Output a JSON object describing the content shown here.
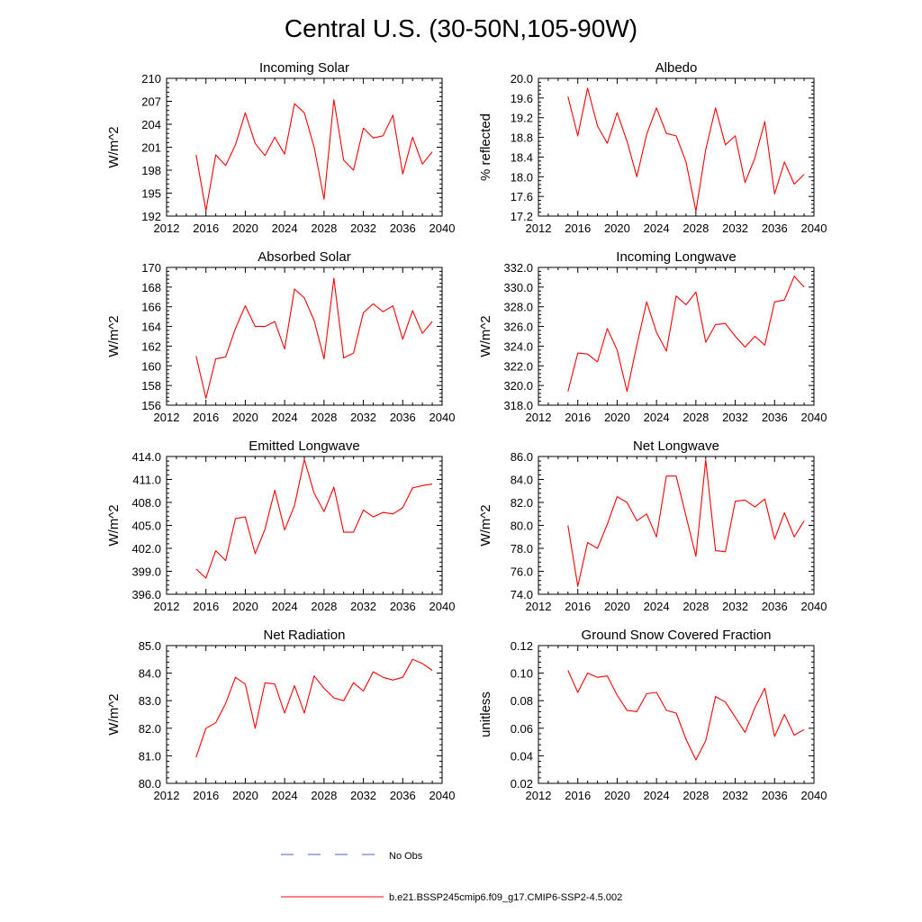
{
  "figure_title": "Central U.S. (30-50N,105-90W)",
  "colors": {
    "model_line": "#ff0000",
    "obs_line": "#4a5fd0",
    "axis": "#000000"
  },
  "legend": {
    "obs_label": "No Obs",
    "model_label": "b.e21.BSSP245cmip6.f09_g17.CMIP6-SSP2-4.5.002"
  },
  "chart_data": [
    {
      "type": "line",
      "title": "Incoming Solar",
      "xlabel": "",
      "ylabel": "W/m^2",
      "xlim": [
        2012,
        2040
      ],
      "xticks": [
        2012,
        2016,
        2020,
        2024,
        2028,
        2032,
        2036,
        2040
      ],
      "ylim": [
        192,
        210
      ],
      "yticks": [
        192,
        195,
        198,
        201,
        204,
        207,
        210
      ],
      "ytick_labels": [
        "192",
        "195",
        "198",
        "201",
        "204",
        "207",
        "210"
      ],
      "grid": false,
      "series": [
        {
          "name": "b.e21.BSSP245cmip6.f09_g17.CMIP6-SSP2-4.5.002",
          "x": [
            2015,
            2016,
            2017,
            2018,
            2019,
            2020,
            2021,
            2022,
            2023,
            2024,
            2025,
            2026,
            2027,
            2028,
            2029,
            2030,
            2031,
            2032,
            2033,
            2034,
            2035,
            2036,
            2037,
            2038,
            2039
          ],
          "y": [
            200.0,
            192.7,
            200.0,
            198.6,
            201.3,
            205.5,
            201.5,
            199.9,
            202.3,
            200.1,
            206.7,
            205.5,
            201.0,
            194.2,
            207.2,
            199.3,
            198.0,
            203.5,
            202.2,
            202.5,
            205.2,
            197.5,
            202.3,
            198.8,
            200.4
          ]
        }
      ]
    },
    {
      "type": "line",
      "title": "Albedo",
      "xlabel": "",
      "ylabel": "% reflected",
      "xlim": [
        2012,
        2040
      ],
      "xticks": [
        2012,
        2016,
        2020,
        2024,
        2028,
        2032,
        2036,
        2040
      ],
      "ylim": [
        17.2,
        20.0
      ],
      "yticks": [
        17.2,
        17.6,
        18.0,
        18.4,
        18.8,
        19.2,
        19.6,
        20.0
      ],
      "ytick_labels": [
        "17.2",
        "17.6",
        "18.0",
        "18.4",
        "18.8",
        "19.2",
        "19.6",
        "20.0"
      ],
      "grid": false,
      "series": [
        {
          "name": "b.e21.BSSP245cmip6.f09_g17.CMIP6-SSP2-4.5.002",
          "x": [
            2015,
            2016,
            2017,
            2018,
            2019,
            2020,
            2021,
            2022,
            2023,
            2024,
            2025,
            2026,
            2027,
            2028,
            2029,
            2030,
            2031,
            2032,
            2033,
            2034,
            2035,
            2036,
            2037,
            2038,
            2039
          ],
          "y": [
            19.63,
            18.83,
            19.8,
            19.03,
            18.68,
            19.3,
            18.72,
            18.0,
            18.86,
            19.4,
            18.88,
            18.83,
            18.3,
            17.3,
            18.55,
            19.4,
            18.65,
            18.83,
            17.88,
            18.38,
            19.12,
            17.65,
            18.3,
            17.85,
            18.05
          ]
        }
      ]
    },
    {
      "type": "line",
      "title": "Absorbed Solar",
      "xlabel": "",
      "ylabel": "W/m^2",
      "xlim": [
        2012,
        2040
      ],
      "xticks": [
        2012,
        2016,
        2020,
        2024,
        2028,
        2032,
        2036,
        2040
      ],
      "ylim": [
        156,
        170
      ],
      "yticks": [
        156,
        158,
        160,
        162,
        164,
        166,
        168,
        170
      ],
      "ytick_labels": [
        "156",
        "158",
        "160",
        "162",
        "164",
        "166",
        "168",
        "170"
      ],
      "grid": false,
      "series": [
        {
          "name": "b.e21.BSSP245cmip6.f09_g17.CMIP6-SSP2-4.5.002",
          "x": [
            2015,
            2016,
            2017,
            2018,
            2019,
            2020,
            2021,
            2022,
            2023,
            2024,
            2025,
            2026,
            2027,
            2028,
            2029,
            2030,
            2031,
            2032,
            2033,
            2034,
            2035,
            2036,
            2037,
            2038,
            2039
          ],
          "y": [
            161.0,
            156.7,
            160.7,
            160.9,
            163.8,
            166.1,
            164.0,
            164.0,
            164.5,
            161.7,
            167.8,
            166.9,
            164.6,
            160.7,
            168.9,
            160.8,
            161.3,
            165.4,
            166.3,
            165.5,
            166.1,
            162.7,
            165.6,
            163.3,
            164.5
          ]
        }
      ]
    },
    {
      "type": "line",
      "title": "Incoming Longwave",
      "xlabel": "",
      "ylabel": "W/m^2",
      "xlim": [
        2012,
        2040
      ],
      "xticks": [
        2012,
        2016,
        2020,
        2024,
        2028,
        2032,
        2036,
        2040
      ],
      "ylim": [
        318.0,
        332.0
      ],
      "yticks": [
        318,
        320,
        322,
        324,
        326,
        328,
        330,
        332
      ],
      "ytick_labels": [
        "318.0",
        "320.0",
        "322.0",
        "324.0",
        "326.0",
        "328.0",
        "330.0",
        "332.0"
      ],
      "grid": false,
      "series": [
        {
          "name": "b.e21.BSSP245cmip6.f09_g17.CMIP6-SSP2-4.5.002",
          "x": [
            2015,
            2016,
            2017,
            2018,
            2019,
            2020,
            2021,
            2022,
            2023,
            2024,
            2025,
            2026,
            2027,
            2028,
            2029,
            2030,
            2031,
            2032,
            2033,
            2034,
            2035,
            2036,
            2037,
            2038,
            2039
          ],
          "y": [
            319.4,
            323.3,
            323.2,
            322.4,
            325.8,
            323.6,
            319.4,
            324.1,
            328.5,
            325.4,
            323.5,
            329.1,
            328.2,
            329.5,
            324.4,
            326.2,
            326.3,
            325.0,
            323.9,
            325.0,
            324.1,
            328.5,
            328.7,
            331.1,
            330.0
          ]
        }
      ]
    },
    {
      "type": "line",
      "title": "Emitted Longwave",
      "xlabel": "",
      "ylabel": "W/m^2",
      "xlim": [
        2012,
        2040
      ],
      "xticks": [
        2012,
        2016,
        2020,
        2024,
        2028,
        2032,
        2036,
        2040
      ],
      "ylim": [
        396.0,
        414.0
      ],
      "yticks": [
        396,
        399,
        402,
        405,
        408,
        411,
        414
      ],
      "ytick_labels": [
        "396.0",
        "399.0",
        "402.0",
        "405.0",
        "408.0",
        "411.0",
        "414.0"
      ],
      "grid": false,
      "series": [
        {
          "name": "b.e21.BSSP245cmip6.f09_g17.CMIP6-SSP2-4.5.002",
          "x": [
            2015,
            2016,
            2017,
            2018,
            2019,
            2020,
            2021,
            2022,
            2023,
            2024,
            2025,
            2026,
            2027,
            2028,
            2029,
            2030,
            2031,
            2032,
            2033,
            2034,
            2035,
            2036,
            2037,
            2038,
            2039
          ],
          "y": [
            399.3,
            398.1,
            401.7,
            400.4,
            405.9,
            406.1,
            401.3,
            404.5,
            409.6,
            404.4,
            407.6,
            413.6,
            409.2,
            406.8,
            410.0,
            404.1,
            404.1,
            407.0,
            406.1,
            406.7,
            406.5,
            407.3,
            409.9,
            410.2,
            410.4
          ]
        }
      ]
    },
    {
      "type": "line",
      "title": "Net Longwave",
      "xlabel": "",
      "ylabel": "W/m^2",
      "xlim": [
        2012,
        2040
      ],
      "xticks": [
        2012,
        2016,
        2020,
        2024,
        2028,
        2032,
        2036,
        2040
      ],
      "ylim": [
        74.0,
        86.0
      ],
      "yticks": [
        74,
        76,
        78,
        80,
        82,
        84,
        86
      ],
      "ytick_labels": [
        "74.0",
        "76.0",
        "78.0",
        "80.0",
        "82.0",
        "84.0",
        "86.0"
      ],
      "grid": false,
      "series": [
        {
          "name": "b.e21.BSSP245cmip6.f09_g17.CMIP6-SSP2-4.5.002",
          "x": [
            2015,
            2016,
            2017,
            2018,
            2019,
            2020,
            2021,
            2022,
            2023,
            2024,
            2025,
            2026,
            2027,
            2028,
            2029,
            2030,
            2031,
            2032,
            2033,
            2034,
            2035,
            2036,
            2037,
            2038,
            2039
          ],
          "y": [
            80.0,
            74.7,
            78.5,
            78.0,
            80.1,
            82.5,
            82.0,
            80.4,
            81.0,
            79.0,
            84.3,
            84.3,
            80.8,
            77.3,
            85.7,
            77.8,
            77.7,
            82.1,
            82.2,
            81.6,
            82.3,
            78.8,
            81.1,
            79.0,
            80.4
          ]
        }
      ]
    },
    {
      "type": "line",
      "title": "Net Radiation",
      "xlabel": "",
      "ylabel": "W/m^2",
      "xlim": [
        2012,
        2040
      ],
      "xticks": [
        2012,
        2016,
        2020,
        2024,
        2028,
        2032,
        2036,
        2040
      ],
      "ylim": [
        80.0,
        85.0
      ],
      "yticks": [
        80,
        81,
        82,
        83,
        84,
        85
      ],
      "ytick_labels": [
        "80.0",
        "81.0",
        "82.0",
        "83.0",
        "84.0",
        "85.0"
      ],
      "grid": false,
      "series": [
        {
          "name": "b.e21.BSSP245cmip6.f09_g17.CMIP6-SSP2-4.5.002",
          "x": [
            2015,
            2016,
            2017,
            2018,
            2019,
            2020,
            2021,
            2022,
            2023,
            2024,
            2025,
            2026,
            2027,
            2028,
            2029,
            2030,
            2031,
            2032,
            2033,
            2034,
            2035,
            2036,
            2037,
            2038,
            2039
          ],
          "y": [
            80.95,
            82.0,
            82.2,
            82.9,
            83.85,
            83.6,
            82.0,
            83.65,
            83.6,
            82.55,
            83.55,
            82.55,
            83.9,
            83.45,
            83.1,
            83.0,
            83.65,
            83.35,
            84.05,
            83.85,
            83.75,
            83.85,
            84.5,
            84.35,
            84.1
          ]
        }
      ]
    },
    {
      "type": "line",
      "title": "Ground Snow Covered Fraction",
      "xlabel": "",
      "ylabel": "unitless",
      "xlim": [
        2012,
        2040
      ],
      "xticks": [
        2012,
        2016,
        2020,
        2024,
        2028,
        2032,
        2036,
        2040
      ],
      "ylim": [
        0.02,
        0.12
      ],
      "yticks": [
        0.02,
        0.04,
        0.06,
        0.08,
        0.1,
        0.12
      ],
      "ytick_labels": [
        "0.02",
        "0.04",
        "0.06",
        "0.08",
        "0.10",
        "0.12"
      ],
      "grid": false,
      "series": [
        {
          "name": "b.e21.BSSP245cmip6.f09_g17.CMIP6-SSP2-4.5.002",
          "x": [
            2015,
            2016,
            2017,
            2018,
            2019,
            2020,
            2021,
            2022,
            2023,
            2024,
            2025,
            2026,
            2027,
            2028,
            2029,
            2030,
            2031,
            2032,
            2033,
            2034,
            2035,
            2036,
            2037,
            2038,
            2039
          ],
          "y": [
            0.102,
            0.086,
            0.1,
            0.097,
            0.098,
            0.084,
            0.073,
            0.072,
            0.085,
            0.086,
            0.073,
            0.071,
            0.052,
            0.037,
            0.051,
            0.083,
            0.079,
            0.068,
            0.057,
            0.075,
            0.089,
            0.054,
            0.07,
            0.055,
            0.059
          ]
        }
      ]
    }
  ]
}
